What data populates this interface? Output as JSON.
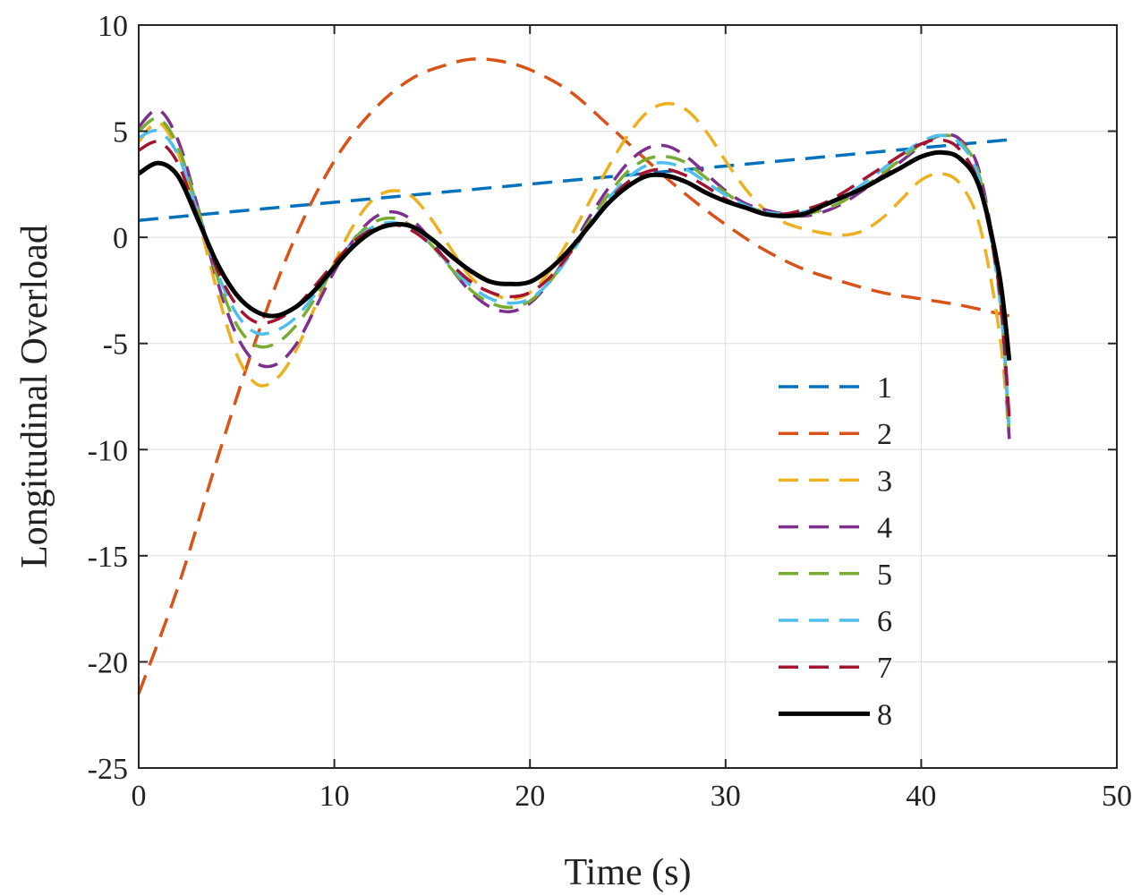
{
  "chart_data": {
    "type": "line",
    "title": "",
    "xlabel": "Time (s)",
    "ylabel": "Longitudinal Overload",
    "xlim": [
      0,
      50
    ],
    "ylim": [
      -25,
      10
    ],
    "xticks": [
      0,
      10,
      20,
      30,
      40,
      50
    ],
    "yticks": [
      10,
      5,
      0,
      -5,
      -10,
      -15,
      -20,
      -25
    ],
    "grid": true,
    "legend_position": "center-right",
    "series": [
      {
        "name": "1",
        "color": "#0072BD",
        "style": "dashed",
        "points": [
          [
            0,
            0.8
          ],
          [
            44.5,
            4.6
          ]
        ]
      },
      {
        "name": "2",
        "color": "#D95319",
        "style": "dashed",
        "points": [
          [
            0,
            -21.5
          ],
          [
            2,
            -16.5
          ],
          [
            4,
            -10.5
          ],
          [
            6,
            -4.8
          ],
          [
            8,
            0
          ],
          [
            10,
            3.6
          ],
          [
            12,
            6.0
          ],
          [
            14,
            7.5
          ],
          [
            16,
            8.2
          ],
          [
            17.2,
            8.4
          ],
          [
            18.5,
            8.3
          ],
          [
            20,
            7.9
          ],
          [
            22,
            6.9
          ],
          [
            24,
            5.3
          ],
          [
            26,
            3.6
          ],
          [
            28,
            2.0
          ],
          [
            30,
            0.6
          ],
          [
            32,
            -0.6
          ],
          [
            34,
            -1.5
          ],
          [
            36,
            -2.1
          ],
          [
            38,
            -2.6
          ],
          [
            40,
            -2.9
          ],
          [
            42,
            -3.2
          ],
          [
            44,
            -3.6
          ],
          [
            44.5,
            -3.7
          ]
        ]
      },
      {
        "name": "3",
        "color": "#EDB120",
        "style": "dashed",
        "points": [
          [
            0,
            4.5
          ],
          [
            1,
            5.4
          ],
          [
            2,
            4.0
          ],
          [
            3,
            1.0
          ],
          [
            4,
            -2.5
          ],
          [
            5,
            -5.5
          ],
          [
            6,
            -6.9
          ],
          [
            7,
            -6.7
          ],
          [
            8,
            -5.4
          ],
          [
            9,
            -3.3
          ],
          [
            10,
            -1.2
          ],
          [
            11,
            0.6
          ],
          [
            12,
            1.8
          ],
          [
            13,
            2.2
          ],
          [
            14,
            1.9
          ],
          [
            15,
            0.8
          ],
          [
            16,
            -0.6
          ],
          [
            17,
            -1.9
          ],
          [
            18,
            -2.6
          ],
          [
            19,
            -2.9
          ],
          [
            20,
            -2.6
          ],
          [
            21,
            -1.6
          ],
          [
            22,
            -0.1
          ],
          [
            23,
            1.6
          ],
          [
            24,
            3.3
          ],
          [
            25,
            4.8
          ],
          [
            26,
            5.9
          ],
          [
            27,
            6.3
          ],
          [
            28,
            6.0
          ],
          [
            29,
            5.0
          ],
          [
            30,
            3.6
          ],
          [
            31,
            2.3
          ],
          [
            32,
            1.3
          ],
          [
            33,
            0.7
          ],
          [
            34,
            0.4
          ],
          [
            35,
            0.2
          ],
          [
            36,
            0.1
          ],
          [
            37,
            0.3
          ],
          [
            38,
            0.9
          ],
          [
            39,
            1.8
          ],
          [
            40,
            2.7
          ],
          [
            41,
            3.0
          ],
          [
            42,
            2.5
          ],
          [
            43,
            0.5
          ],
          [
            44,
            -4.5
          ],
          [
            44.5,
            -9.5
          ]
        ]
      },
      {
        "name": "4",
        "color": "#7E2F8E",
        "style": "dashed",
        "points": [
          [
            0,
            5.2
          ],
          [
            1,
            6.0
          ],
          [
            2,
            4.6
          ],
          [
            3,
            1.5
          ],
          [
            4,
            -2.0
          ],
          [
            5,
            -4.6
          ],
          [
            6,
            -5.9
          ],
          [
            7,
            -6.0
          ],
          [
            8,
            -5.1
          ],
          [
            9,
            -3.4
          ],
          [
            10,
            -1.6
          ],
          [
            11,
            -0.1
          ],
          [
            12,
            0.9
          ],
          [
            13,
            1.2
          ],
          [
            14,
            0.8
          ],
          [
            15,
            -0.2
          ],
          [
            16,
            -1.5
          ],
          [
            17,
            -2.6
          ],
          [
            18,
            -3.3
          ],
          [
            19,
            -3.5
          ],
          [
            20,
            -3.1
          ],
          [
            21,
            -2.1
          ],
          [
            22,
            -0.7
          ],
          [
            23,
            0.9
          ],
          [
            24,
            2.3
          ],
          [
            25,
            3.5
          ],
          [
            26,
            4.2
          ],
          [
            27,
            4.3
          ],
          [
            28,
            3.8
          ],
          [
            29,
            3.0
          ],
          [
            30,
            2.2
          ],
          [
            31,
            1.6
          ],
          [
            32,
            1.3
          ],
          [
            33,
            1.1
          ],
          [
            34,
            1.0
          ],
          [
            35,
            1.2
          ],
          [
            36,
            1.6
          ],
          [
            37,
            2.2
          ],
          [
            38,
            2.9
          ],
          [
            39,
            3.6
          ],
          [
            40,
            4.3
          ],
          [
            41,
            4.8
          ],
          [
            42,
            4.6
          ],
          [
            43,
            3.0
          ],
          [
            44,
            -2.5
          ],
          [
            44.5,
            -9.5
          ]
        ]
      },
      {
        "name": "5",
        "color": "#77AC30",
        "style": "dashed",
        "points": [
          [
            0,
            5.0
          ],
          [
            1,
            5.6
          ],
          [
            2,
            4.3
          ],
          [
            3,
            1.4
          ],
          [
            4,
            -1.8
          ],
          [
            5,
            -4.1
          ],
          [
            6,
            -5.1
          ],
          [
            7,
            -5.0
          ],
          [
            8,
            -4.2
          ],
          [
            9,
            -2.9
          ],
          [
            10,
            -1.4
          ],
          [
            11,
            -0.1
          ],
          [
            12,
            0.7
          ],
          [
            13,
            0.9
          ],
          [
            14,
            0.5
          ],
          [
            15,
            -0.4
          ],
          [
            16,
            -1.5
          ],
          [
            17,
            -2.5
          ],
          [
            18,
            -3.1
          ],
          [
            19,
            -3.3
          ],
          [
            20,
            -3.0
          ],
          [
            21,
            -2.1
          ],
          [
            22,
            -0.8
          ],
          [
            23,
            0.7
          ],
          [
            24,
            2.0
          ],
          [
            25,
            3.1
          ],
          [
            26,
            3.7
          ],
          [
            27,
            3.8
          ],
          [
            28,
            3.5
          ],
          [
            29,
            2.8
          ],
          [
            30,
            2.1
          ],
          [
            31,
            1.5
          ],
          [
            32,
            1.2
          ],
          [
            33,
            1.1
          ],
          [
            34,
            1.1
          ],
          [
            35,
            1.3
          ],
          [
            36,
            1.7
          ],
          [
            37,
            2.3
          ],
          [
            38,
            3.0
          ],
          [
            39,
            3.7
          ],
          [
            40,
            4.4
          ],
          [
            41,
            4.8
          ],
          [
            42,
            4.5
          ],
          [
            43,
            2.8
          ],
          [
            44,
            -2.5
          ],
          [
            44.5,
            -9.3
          ]
        ]
      },
      {
        "name": "6",
        "color": "#4DBEEE",
        "style": "dashed",
        "points": [
          [
            0,
            4.7
          ],
          [
            1,
            5.0
          ],
          [
            2,
            3.9
          ],
          [
            3,
            1.2
          ],
          [
            4,
            -1.6
          ],
          [
            5,
            -3.6
          ],
          [
            6,
            -4.5
          ],
          [
            7,
            -4.4
          ],
          [
            8,
            -3.8
          ],
          [
            9,
            -2.7
          ],
          [
            10,
            -1.4
          ],
          [
            11,
            -0.2
          ],
          [
            12,
            0.5
          ],
          [
            13,
            0.7
          ],
          [
            14,
            0.4
          ],
          [
            15,
            -0.4
          ],
          [
            16,
            -1.4
          ],
          [
            17,
            -2.3
          ],
          [
            18,
            -2.9
          ],
          [
            19,
            -3.1
          ],
          [
            20,
            -2.9
          ],
          [
            21,
            -2.1
          ],
          [
            22,
            -0.9
          ],
          [
            23,
            0.5
          ],
          [
            24,
            1.8
          ],
          [
            25,
            2.8
          ],
          [
            26,
            3.4
          ],
          [
            27,
            3.5
          ],
          [
            28,
            3.2
          ],
          [
            29,
            2.6
          ],
          [
            30,
            2.0
          ],
          [
            31,
            1.5
          ],
          [
            32,
            1.2
          ],
          [
            33,
            1.1
          ],
          [
            34,
            1.2
          ],
          [
            35,
            1.5
          ],
          [
            36,
            1.9
          ],
          [
            37,
            2.5
          ],
          [
            38,
            3.2
          ],
          [
            39,
            3.9
          ],
          [
            40,
            4.5
          ],
          [
            41,
            4.8
          ],
          [
            42,
            4.4
          ],
          [
            43,
            2.6
          ],
          [
            44,
            -2.8
          ],
          [
            44.5,
            -9.0
          ]
        ]
      },
      {
        "name": "7",
        "color": "#A2142F",
        "style": "dashed",
        "points": [
          [
            0,
            4.1
          ],
          [
            1,
            4.5
          ],
          [
            2,
            3.5
          ],
          [
            3,
            1.0
          ],
          [
            4,
            -1.5
          ],
          [
            5,
            -3.2
          ],
          [
            6,
            -4.0
          ],
          [
            7,
            -3.9
          ],
          [
            8,
            -3.3
          ],
          [
            9,
            -2.3
          ],
          [
            10,
            -1.2
          ],
          [
            11,
            -0.2
          ],
          [
            12,
            0.4
          ],
          [
            13,
            0.6
          ],
          [
            14,
            0.3
          ],
          [
            15,
            -0.4
          ],
          [
            16,
            -1.3
          ],
          [
            17,
            -2.1
          ],
          [
            18,
            -2.6
          ],
          [
            19,
            -2.8
          ],
          [
            20,
            -2.6
          ],
          [
            21,
            -1.9
          ],
          [
            22,
            -0.8
          ],
          [
            23,
            0.5
          ],
          [
            24,
            1.7
          ],
          [
            25,
            2.6
          ],
          [
            26,
            3.1
          ],
          [
            27,
            3.2
          ],
          [
            28,
            2.9
          ],
          [
            29,
            2.4
          ],
          [
            30,
            1.8
          ],
          [
            31,
            1.4
          ],
          [
            32,
            1.1
          ],
          [
            33,
            1.1
          ],
          [
            34,
            1.3
          ],
          [
            35,
            1.6
          ],
          [
            36,
            2.1
          ],
          [
            37,
            2.7
          ],
          [
            38,
            3.3
          ],
          [
            39,
            3.9
          ],
          [
            40,
            4.4
          ],
          [
            41,
            4.6
          ],
          [
            42,
            4.1
          ],
          [
            43,
            2.3
          ],
          [
            44,
            -2.5
          ],
          [
            44.5,
            -8.5
          ]
        ]
      },
      {
        "name": "8",
        "color": "#000000",
        "style": "solid",
        "points": [
          [
            0,
            3.0
          ],
          [
            1,
            3.5
          ],
          [
            2,
            2.9
          ],
          [
            3,
            0.9
          ],
          [
            4,
            -1.2
          ],
          [
            5,
            -2.7
          ],
          [
            6,
            -3.5
          ],
          [
            7,
            -3.7
          ],
          [
            8,
            -3.3
          ],
          [
            9,
            -2.5
          ],
          [
            10,
            -1.4
          ],
          [
            11,
            -0.4
          ],
          [
            12,
            0.3
          ],
          [
            13,
            0.6
          ],
          [
            14,
            0.5
          ],
          [
            15,
            -0.1
          ],
          [
            16,
            -0.9
          ],
          [
            17,
            -1.6
          ],
          [
            18,
            -2.1
          ],
          [
            19,
            -2.2
          ],
          [
            20,
            -2.1
          ],
          [
            21,
            -1.5
          ],
          [
            22,
            -0.6
          ],
          [
            23,
            0.5
          ],
          [
            24,
            1.6
          ],
          [
            25,
            2.4
          ],
          [
            26,
            2.9
          ],
          [
            27,
            2.9
          ],
          [
            28,
            2.6
          ],
          [
            29,
            2.1
          ],
          [
            30,
            1.7
          ],
          [
            31,
            1.4
          ],
          [
            32,
            1.1
          ],
          [
            33,
            1.0
          ],
          [
            34,
            1.1
          ],
          [
            35,
            1.5
          ],
          [
            36,
            1.9
          ],
          [
            37,
            2.3
          ],
          [
            38,
            2.8
          ],
          [
            39,
            3.3
          ],
          [
            40,
            3.8
          ],
          [
            41,
            4.0
          ],
          [
            42,
            3.7
          ],
          [
            43,
            2.3
          ],
          [
            44,
            -1.8
          ],
          [
            44.5,
            -5.8
          ]
        ]
      }
    ]
  }
}
